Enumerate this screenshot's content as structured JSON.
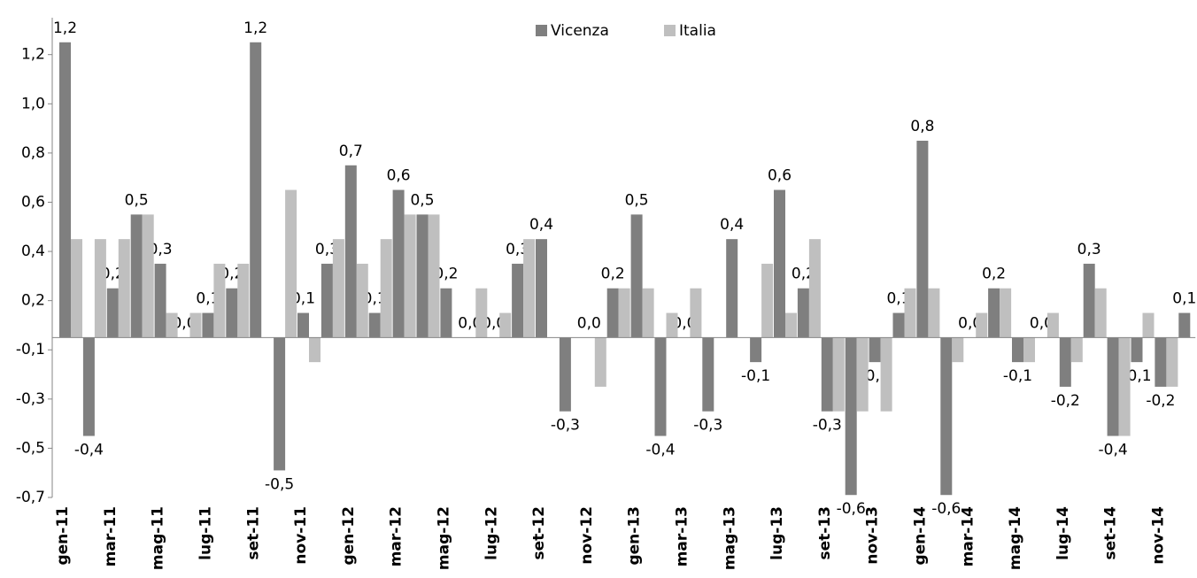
{
  "chart_data": {
    "type": "bar",
    "categories": [
      "gen-11",
      null,
      "mar-11",
      null,
      "mag-11",
      null,
      "lug-11",
      null,
      "set-11",
      null,
      "nov-11",
      null,
      "gen-12",
      null,
      "mar-12",
      null,
      "mag-12",
      null,
      "lug-12",
      null,
      "set-12",
      null,
      "nov-12",
      null,
      "gen-13",
      null,
      "mar-13",
      null,
      "mag-13",
      null,
      "lug-13",
      null,
      "set-13",
      null,
      "nov-13",
      null,
      "gen-14",
      null,
      "mar-14",
      null,
      "mag-14",
      null,
      "lug-14",
      null,
      "set-14",
      null,
      "nov-14",
      null
    ],
    "series": [
      {
        "name": "Vicenza",
        "color": "#7f7f7f",
        "values": [
          1.2,
          -0.4,
          0.2,
          0.5,
          0.3,
          0,
          0.1,
          0.2,
          1.2,
          -0.54,
          0.1,
          0.3,
          0.7,
          0.1,
          0.6,
          0.5,
          0.2,
          0,
          0,
          0.3,
          0.4,
          -0.3,
          0,
          0.2,
          0.5,
          -0.4,
          0,
          -0.3,
          0.4,
          -0.1,
          0.6,
          0.2,
          -0.3,
          -0.64,
          -0.1,
          0.1,
          0.8,
          -0.64,
          0,
          0.2,
          -0.1,
          0,
          -0.2,
          0.3,
          -0.4,
          -0.1,
          -0.2,
          0.1
        ],
        "value_labels": [
          "1,2",
          "-0,4",
          "0,2",
          "0,5",
          "0,3",
          "0,0",
          "0,1",
          "0,2",
          "1,2",
          "-0,5",
          "0,1",
          "0,3",
          "0,7",
          "0,1",
          "0,6",
          "0,5",
          "0,2",
          "0,0",
          "0,0",
          "0,3",
          "0,4",
          "-0,3",
          "0,0",
          "0,2",
          "0,5",
          "-0,4",
          "0,0",
          "-0,3",
          "0,4",
          "-0,1",
          "0,6",
          "0,2",
          "-0,3",
          "-0,6",
          "-0,1",
          "0,1",
          "0,8",
          "-0,6",
          "0,0",
          "0,2",
          "-0,1",
          "0,0",
          "-0,2",
          "0,3",
          "-0,4",
          "-0,1",
          "-0,2",
          "0,1"
        ]
      },
      {
        "name": "Italia",
        "color": "#bfbfbf",
        "values": [
          0.4,
          0.4,
          0.4,
          0.5,
          0.1,
          0.1,
          0.3,
          0.3,
          0,
          0.6,
          -0.1,
          0.4,
          0.3,
          0.4,
          0.5,
          0.5,
          0,
          0.2,
          0.1,
          0.4,
          0,
          0,
          -0.2,
          0.2,
          0.2,
          0.1,
          0.2,
          0,
          0,
          0.3,
          0.1,
          0.4,
          -0.3,
          -0.3,
          -0.3,
          0.2,
          0.2,
          -0.1,
          0.1,
          0.2,
          -0.1,
          0.1,
          -0.1,
          0.2,
          -0.4,
          0.1,
          -0.2,
          0
        ]
      }
    ],
    "ylim": [
      -0.65,
      1.3
    ],
    "yticks": [
      {
        "value": -0.65,
        "label": "-0,7"
      },
      {
        "value": -0.45,
        "label": "-0,5"
      },
      {
        "value": -0.25,
        "label": "-0,3"
      },
      {
        "value": -0.05,
        "label": "-0,1"
      },
      {
        "value": 0.15,
        "label": "0,2"
      },
      {
        "value": 0.35,
        "label": "0,4"
      },
      {
        "value": 0.55,
        "label": "0,6"
      },
      {
        "value": 0.75,
        "label": "0,8"
      },
      {
        "value": 0.95,
        "label": "1,0"
      },
      {
        "value": 1.15,
        "label": "1,2"
      }
    ],
    "grid": false,
    "legend": "top"
  }
}
